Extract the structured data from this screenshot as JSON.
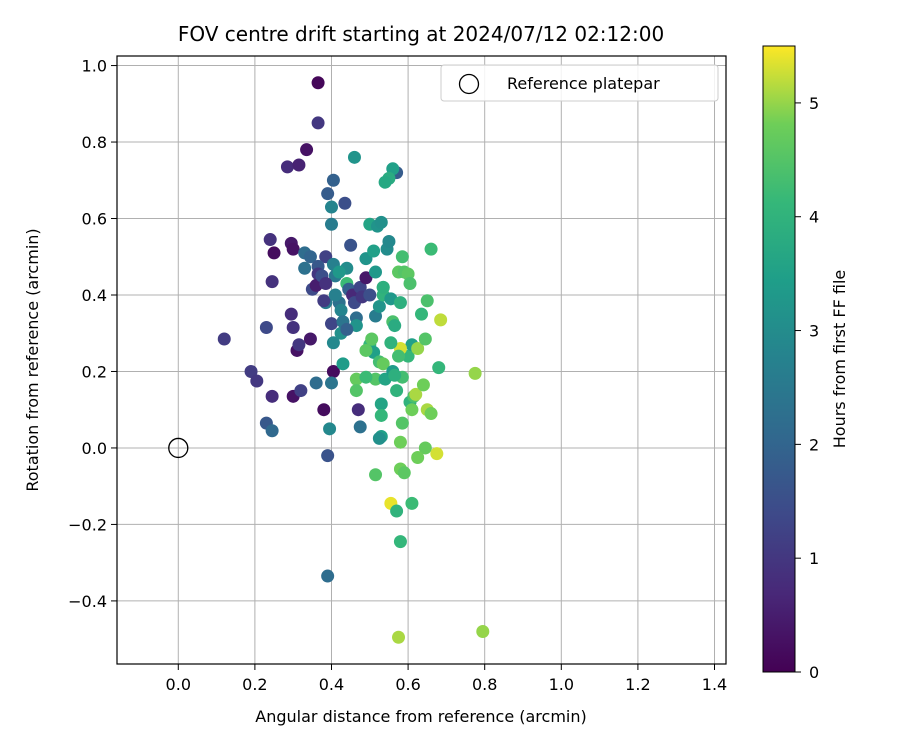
{
  "chart_data": {
    "type": "scatter",
    "title": "FOV centre drift starting at 2024/07/12 02:12:00",
    "xlabel": "Angular distance from reference (arcmin)",
    "ylabel": "Rotation from reference (arcmin)",
    "xlim": [
      -0.16,
      1.43
    ],
    "ylim": [
      -0.565,
      1.025
    ],
    "xticks": [
      0.0,
      0.2,
      0.4,
      0.6,
      0.8,
      1.0,
      1.2,
      1.4
    ],
    "yticks": [
      -0.4,
      -0.2,
      0.0,
      0.2,
      0.4,
      0.6,
      0.8,
      1.0
    ],
    "xtick_labels": [
      "0.0",
      "0.2",
      "0.4",
      "0.6",
      "0.8",
      "1.0",
      "1.2",
      "1.4"
    ],
    "ytick_labels": [
      "−0.4",
      "−0.2",
      "0.0",
      "0.2",
      "0.4",
      "0.6",
      "0.8",
      "1.0"
    ],
    "grid": true,
    "legend": {
      "position": "top-right",
      "entries": [
        {
          "label": "Reference platepar",
          "marker": "open-circle"
        }
      ]
    },
    "reference_point": {
      "x": 0.0,
      "y": 0.0
    },
    "colorbar": {
      "label": "Hours from first FF file",
      "colormap": "viridis",
      "range": [
        0,
        5.5
      ],
      "ticks": [
        0,
        1,
        2,
        3,
        4,
        5
      ],
      "tick_labels": [
        "0",
        "1",
        "2",
        "3",
        "4",
        "5"
      ]
    },
    "points": [
      {
        "x": 0.365,
        "y": 0.955,
        "c": 0.1
      },
      {
        "x": 0.335,
        "y": 0.78,
        "c": 0.3
      },
      {
        "x": 0.365,
        "y": 0.85,
        "c": 1.0
      },
      {
        "x": 0.285,
        "y": 0.735,
        "c": 0.8
      },
      {
        "x": 0.315,
        "y": 0.74,
        "c": 0.6
      },
      {
        "x": 0.39,
        "y": 0.665,
        "c": 1.8
      },
      {
        "x": 0.405,
        "y": 0.7,
        "c": 1.9
      },
      {
        "x": 0.435,
        "y": 0.64,
        "c": 1.5
      },
      {
        "x": 0.4,
        "y": 0.63,
        "c": 2.8
      },
      {
        "x": 0.4,
        "y": 0.585,
        "c": 2.6
      },
      {
        "x": 0.24,
        "y": 0.545,
        "c": 0.9
      },
      {
        "x": 0.295,
        "y": 0.535,
        "c": 0.4
      },
      {
        "x": 0.3,
        "y": 0.52,
        "c": 0.3
      },
      {
        "x": 0.25,
        "y": 0.51,
        "c": 0.2
      },
      {
        "x": 0.33,
        "y": 0.51,
        "c": 2.2
      },
      {
        "x": 0.345,
        "y": 0.5,
        "c": 2.0
      },
      {
        "x": 0.385,
        "y": 0.5,
        "c": 1.2
      },
      {
        "x": 0.365,
        "y": 0.475,
        "c": 1.7
      },
      {
        "x": 0.33,
        "y": 0.47,
        "c": 2.3
      },
      {
        "x": 0.365,
        "y": 0.455,
        "c": 1.0
      },
      {
        "x": 0.245,
        "y": 0.435,
        "c": 0.9
      },
      {
        "x": 0.35,
        "y": 0.415,
        "c": 1.4
      },
      {
        "x": 0.36,
        "y": 0.425,
        "c": 0.5
      },
      {
        "x": 0.385,
        "y": 0.38,
        "c": 2.6
      },
      {
        "x": 0.38,
        "y": 0.385,
        "c": 1.1
      },
      {
        "x": 0.295,
        "y": 0.35,
        "c": 0.8
      },
      {
        "x": 0.3,
        "y": 0.315,
        "c": 0.9
      },
      {
        "x": 0.4,
        "y": 0.325,
        "c": 1.3
      },
      {
        "x": 0.31,
        "y": 0.255,
        "c": 0.3
      },
      {
        "x": 0.315,
        "y": 0.27,
        "c": 1.0
      },
      {
        "x": 0.345,
        "y": 0.285,
        "c": 0.4
      },
      {
        "x": 0.12,
        "y": 0.285,
        "c": 1.1
      },
      {
        "x": 0.23,
        "y": 0.315,
        "c": 1.4
      },
      {
        "x": 0.19,
        "y": 0.2,
        "c": 1.1
      },
      {
        "x": 0.205,
        "y": 0.175,
        "c": 1.0
      },
      {
        "x": 0.245,
        "y": 0.135,
        "c": 0.8
      },
      {
        "x": 0.3,
        "y": 0.135,
        "c": 0.3
      },
      {
        "x": 0.32,
        "y": 0.15,
        "c": 1.2
      },
      {
        "x": 0.36,
        "y": 0.17,
        "c": 2.2
      },
      {
        "x": 0.23,
        "y": 0.065,
        "c": 1.7
      },
      {
        "x": 0.245,
        "y": 0.045,
        "c": 2.1
      },
      {
        "x": 0.38,
        "y": 0.1,
        "c": 0.2
      },
      {
        "x": 0.395,
        "y": 0.05,
        "c": 2.9
      },
      {
        "x": 0.39,
        "y": -0.02,
        "c": 1.6
      },
      {
        "x": 0.39,
        "y": -0.335,
        "c": 2.2
      },
      {
        "x": 0.405,
        "y": 0.2,
        "c": 0.2
      },
      {
        "x": 0.4,
        "y": 0.17,
        "c": 2.4
      },
      {
        "x": 0.405,
        "y": 0.275,
        "c": 2.9
      },
      {
        "x": 0.405,
        "y": 0.48,
        "c": 2.7
      },
      {
        "x": 0.41,
        "y": 0.45,
        "c": 2.5
      },
      {
        "x": 0.42,
        "y": 0.38,
        "c": 2.3
      },
      {
        "x": 0.425,
        "y": 0.36,
        "c": 2.8
      },
      {
        "x": 0.425,
        "y": 0.3,
        "c": 3.1
      },
      {
        "x": 0.43,
        "y": 0.22,
        "c": 3.4
      },
      {
        "x": 0.44,
        "y": 0.47,
        "c": 3.0
      },
      {
        "x": 0.44,
        "y": 0.43,
        "c": 4.2
      },
      {
        "x": 0.445,
        "y": 0.415,
        "c": 1.9
      },
      {
        "x": 0.45,
        "y": 0.53,
        "c": 1.6
      },
      {
        "x": 0.455,
        "y": 0.4,
        "c": 0.7
      },
      {
        "x": 0.46,
        "y": 0.38,
        "c": 1.4
      },
      {
        "x": 0.465,
        "y": 0.34,
        "c": 2.2
      },
      {
        "x": 0.465,
        "y": 0.32,
        "c": 3.2
      },
      {
        "x": 0.46,
        "y": 0.76,
        "c": 3.2
      },
      {
        "x": 0.475,
        "y": 0.42,
        "c": 1.3
      },
      {
        "x": 0.48,
        "y": 0.395,
        "c": 1.0
      },
      {
        "x": 0.49,
        "y": 0.445,
        "c": 0.4
      },
      {
        "x": 0.49,
        "y": 0.495,
        "c": 3.2
      },
      {
        "x": 0.5,
        "y": 0.4,
        "c": 1.5
      },
      {
        "x": 0.5,
        "y": 0.585,
        "c": 3.6
      },
      {
        "x": 0.51,
        "y": 0.515,
        "c": 3.5
      },
      {
        "x": 0.515,
        "y": 0.46,
        "c": 3.3
      },
      {
        "x": 0.515,
        "y": 0.345,
        "c": 2.6
      },
      {
        "x": 0.52,
        "y": 0.58,
        "c": 3.2
      },
      {
        "x": 0.525,
        "y": 0.37,
        "c": 3.2
      },
      {
        "x": 0.53,
        "y": 0.59,
        "c": 3.1
      },
      {
        "x": 0.535,
        "y": 0.4,
        "c": 4.0
      },
      {
        "x": 0.535,
        "y": 0.42,
        "c": 4.2
      },
      {
        "x": 0.545,
        "y": 0.52,
        "c": 3.0
      },
      {
        "x": 0.55,
        "y": 0.54,
        "c": 2.9
      },
      {
        "x": 0.555,
        "y": 0.39,
        "c": 3.3
      },
      {
        "x": 0.56,
        "y": 0.33,
        "c": 4.4
      },
      {
        "x": 0.565,
        "y": 0.32,
        "c": 3.8
      },
      {
        "x": 0.57,
        "y": 0.72,
        "c": 1.8
      },
      {
        "x": 0.56,
        "y": 0.73,
        "c": 3.5
      },
      {
        "x": 0.55,
        "y": 0.705,
        "c": 3.8
      },
      {
        "x": 0.54,
        "y": 0.695,
        "c": 3.7
      },
      {
        "x": 0.575,
        "y": 0.46,
        "c": 4.6
      },
      {
        "x": 0.58,
        "y": 0.38,
        "c": 3.9
      },
      {
        "x": 0.585,
        "y": 0.5,
        "c": 4.3
      },
      {
        "x": 0.59,
        "y": 0.46,
        "c": 4.5
      },
      {
        "x": 0.6,
        "y": 0.455,
        "c": 4.6
      },
      {
        "x": 0.605,
        "y": 0.43,
        "c": 4.4
      },
      {
        "x": 0.6,
        "y": 0.24,
        "c": 4.1
      },
      {
        "x": 0.61,
        "y": 0.27,
        "c": 3.5
      },
      {
        "x": 0.58,
        "y": 0.26,
        "c": 5.3
      },
      {
        "x": 0.625,
        "y": 0.26,
        "c": 5.0
      },
      {
        "x": 0.635,
        "y": 0.35,
        "c": 4.1
      },
      {
        "x": 0.645,
        "y": 0.285,
        "c": 4.5
      },
      {
        "x": 0.65,
        "y": 0.385,
        "c": 4.4
      },
      {
        "x": 0.66,
        "y": 0.52,
        "c": 4.2
      },
      {
        "x": 0.685,
        "y": 0.335,
        "c": 5.2
      },
      {
        "x": 0.68,
        "y": 0.21,
        "c": 4.1
      },
      {
        "x": 0.5,
        "y": 0.27,
        "c": 4.1
      },
      {
        "x": 0.505,
        "y": 0.285,
        "c": 4.6
      },
      {
        "x": 0.51,
        "y": 0.25,
        "c": 3.5
      },
      {
        "x": 0.49,
        "y": 0.255,
        "c": 4.6
      },
      {
        "x": 0.525,
        "y": 0.225,
        "c": 4.3
      },
      {
        "x": 0.535,
        "y": 0.22,
        "c": 4.7
      },
      {
        "x": 0.515,
        "y": 0.18,
        "c": 4.5
      },
      {
        "x": 0.54,
        "y": 0.18,
        "c": 3.6
      },
      {
        "x": 0.56,
        "y": 0.2,
        "c": 3.4
      },
      {
        "x": 0.575,
        "y": 0.24,
        "c": 4.3
      },
      {
        "x": 0.585,
        "y": 0.185,
        "c": 4.3
      },
      {
        "x": 0.57,
        "y": 0.15,
        "c": 4.0
      },
      {
        "x": 0.605,
        "y": 0.12,
        "c": 4.0
      },
      {
        "x": 0.615,
        "y": 0.135,
        "c": 4.4
      },
      {
        "x": 0.62,
        "y": 0.14,
        "c": 5.1
      },
      {
        "x": 0.61,
        "y": 0.1,
        "c": 4.8
      },
      {
        "x": 0.64,
        "y": 0.165,
        "c": 4.8
      },
      {
        "x": 0.65,
        "y": 0.1,
        "c": 5.1
      },
      {
        "x": 0.66,
        "y": 0.09,
        "c": 4.8
      },
      {
        "x": 0.645,
        "y": 0.0,
        "c": 4.7
      },
      {
        "x": 0.625,
        "y": -0.025,
        "c": 4.8
      },
      {
        "x": 0.675,
        "y": -0.015,
        "c": 5.3
      },
      {
        "x": 0.775,
        "y": 0.195,
        "c": 5.0
      },
      {
        "x": 0.58,
        "y": 0.015,
        "c": 4.8
      },
      {
        "x": 0.585,
        "y": 0.065,
        "c": 4.5
      },
      {
        "x": 0.53,
        "y": 0.115,
        "c": 3.6
      },
      {
        "x": 0.53,
        "y": 0.085,
        "c": 4.1
      },
      {
        "x": 0.53,
        "y": 0.03,
        "c": 3.5
      },
      {
        "x": 0.525,
        "y": 0.025,
        "c": 3.1
      },
      {
        "x": 0.535,
        "y": 0.42,
        "c": 3.9
      },
      {
        "x": 0.465,
        "y": 0.18,
        "c": 4.7
      },
      {
        "x": 0.465,
        "y": 0.15,
        "c": 4.5
      },
      {
        "x": 0.47,
        "y": 0.1,
        "c": 0.8
      },
      {
        "x": 0.475,
        "y": 0.055,
        "c": 2.3
      },
      {
        "x": 0.49,
        "y": 0.185,
        "c": 4.2
      },
      {
        "x": 0.515,
        "y": -0.07,
        "c": 4.5
      },
      {
        "x": 0.555,
        "y": -0.145,
        "c": 5.4
      },
      {
        "x": 0.57,
        "y": -0.165,
        "c": 4.0
      },
      {
        "x": 0.58,
        "y": -0.245,
        "c": 4.1
      },
      {
        "x": 0.58,
        "y": -0.055,
        "c": 4.8
      },
      {
        "x": 0.59,
        "y": -0.065,
        "c": 4.6
      },
      {
        "x": 0.61,
        "y": -0.145,
        "c": 4.2
      },
      {
        "x": 0.575,
        "y": -0.495,
        "c": 5.1
      },
      {
        "x": 0.795,
        "y": -0.48,
        "c": 5.0
      },
      {
        "x": 0.555,
        "y": 0.275,
        "c": 4.0
      },
      {
        "x": 0.565,
        "y": 0.19,
        "c": 3.9
      },
      {
        "x": 0.41,
        "y": 0.4,
        "c": 2.7
      },
      {
        "x": 0.43,
        "y": 0.33,
        "c": 2.4
      },
      {
        "x": 0.44,
        "y": 0.31,
        "c": 1.9
      },
      {
        "x": 0.375,
        "y": 0.45,
        "c": 1.5
      },
      {
        "x": 0.385,
        "y": 0.43,
        "c": 0.9
      },
      {
        "x": 0.42,
        "y": 0.46,
        "c": 3.3
      }
    ]
  }
}
